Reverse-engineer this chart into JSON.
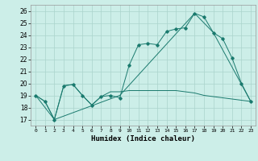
{
  "title": "",
  "xlabel": "Humidex (Indice chaleur)",
  "background_color": "#cceee8",
  "grid_color": "#aad4cc",
  "line_color": "#1a7a6e",
  "xlim": [
    -0.5,
    23.5
  ],
  "ylim": [
    16.5,
    26.5
  ],
  "xticks": [
    0,
    1,
    2,
    3,
    4,
    5,
    6,
    7,
    8,
    9,
    10,
    11,
    12,
    13,
    14,
    15,
    16,
    17,
    18,
    19,
    20,
    21,
    22,
    23
  ],
  "yticks": [
    17,
    18,
    19,
    20,
    21,
    22,
    23,
    24,
    25,
    26
  ],
  "line1_x": [
    0,
    1,
    2,
    3,
    4,
    5,
    6,
    7,
    8,
    9,
    10,
    11,
    12,
    13,
    14,
    15,
    16,
    17,
    18,
    19,
    20,
    21,
    22,
    23
  ],
  "line1_y": [
    19.0,
    18.5,
    17.0,
    19.8,
    19.9,
    19.0,
    18.2,
    18.9,
    19.0,
    18.8,
    21.5,
    23.2,
    23.3,
    23.2,
    24.3,
    24.5,
    24.6,
    25.8,
    25.5,
    24.2,
    23.7,
    22.1,
    20.0,
    18.5
  ],
  "line2_x": [
    0,
    1,
    2,
    3,
    4,
    5,
    6,
    7,
    8,
    9,
    10,
    11,
    12,
    13,
    14,
    15,
    16,
    17,
    18,
    19,
    20,
    21,
    22,
    23
  ],
  "line2_y": [
    19.0,
    18.5,
    17.0,
    19.8,
    19.9,
    19.0,
    18.2,
    18.9,
    19.3,
    19.3,
    19.4,
    19.4,
    19.4,
    19.4,
    19.4,
    19.4,
    19.3,
    19.2,
    19.0,
    18.9,
    18.8,
    18.7,
    18.6,
    18.5
  ],
  "line3_x": [
    0,
    2,
    9,
    17,
    19,
    23
  ],
  "line3_y": [
    19.0,
    17.0,
    19.0,
    25.8,
    24.2,
    18.5
  ]
}
